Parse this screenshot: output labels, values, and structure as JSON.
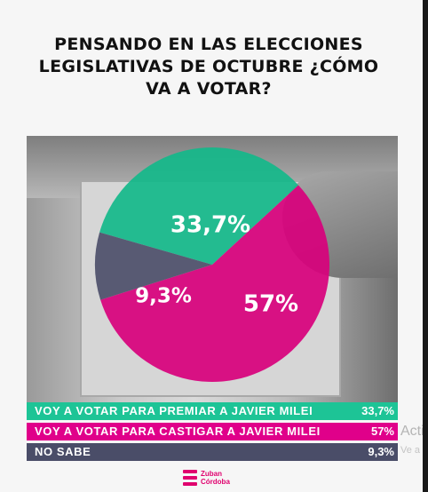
{
  "title": "PENSANDO EN LAS ELECCIONES LEGISLATIVAS DE OCTUBRE ¿CÓMO VA A VOTAR?",
  "chart_data": {
    "type": "pie",
    "title": "PENSANDO EN LAS ELECCIONES LEGISLATIVAS DE OCTUBRE ¿CÓMO VA A VOTAR?",
    "slices": [
      {
        "label": "VOY A VOTAR PARA PREMIAR A JAVIER  MILEI",
        "value": 33.7,
        "display": "33,7%",
        "legend_value": "33,7%",
        "color": "#14b98a",
        "legend_color": "#1dc496"
      },
      {
        "label": "VOY A VOTAR PARA CASTIGAR A JAVIER MILEI",
        "value": 57,
        "display": "57%",
        "legend_value": "57%",
        "color": "#d8007c",
        "legend_color": "#e0008a"
      },
      {
        "label": "NO SABE",
        "value": 9.3,
        "display": "9,3%",
        "legend_value": "9,3%",
        "color": "#4a4d68",
        "legend_color": "#4a4d68"
      }
    ]
  },
  "logo": {
    "line1": "Zuban",
    "line2": "Córdoba"
  },
  "watermark": {
    "line1": "Acti",
    "line2": "Ve a"
  }
}
